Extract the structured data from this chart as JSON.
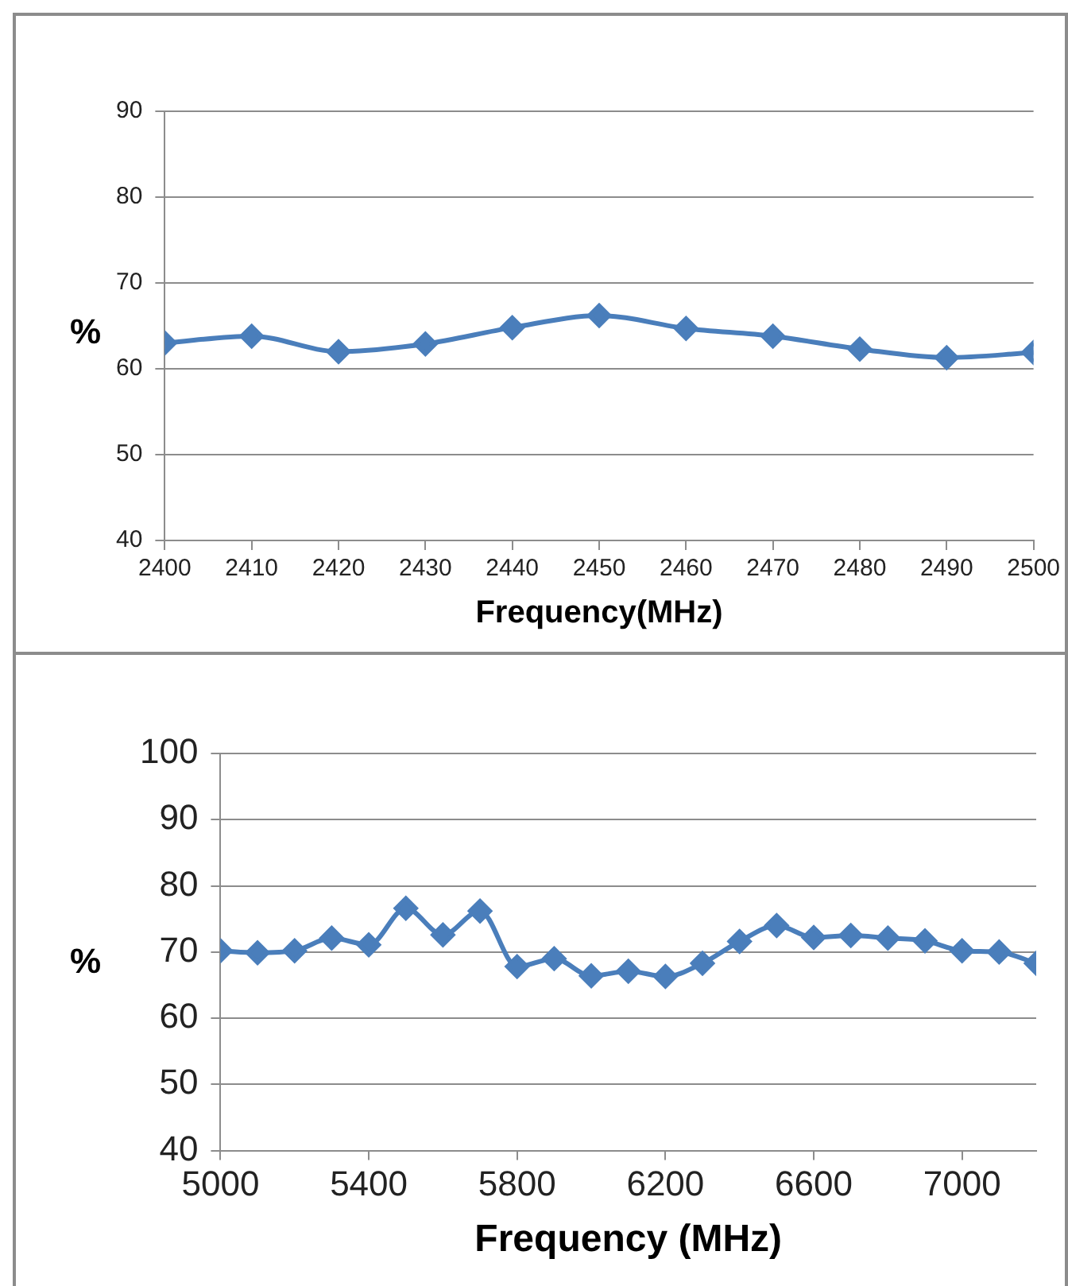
{
  "chart_data": [
    {
      "type": "line",
      "xlabel": "Frequency(MHz)",
      "ylabel": "%",
      "x": [
        2400,
        2410,
        2420,
        2430,
        2440,
        2450,
        2460,
        2470,
        2480,
        2490,
        2500
      ],
      "color": "#4a7ebb",
      "values": [
        63.0,
        63.8,
        62.0,
        62.9,
        64.8,
        66.2,
        64.7,
        63.8,
        62.3,
        61.3,
        61.9
      ],
      "xlim": [
        2400,
        2500
      ],
      "xticks": [
        2400,
        2410,
        2420,
        2430,
        2440,
        2450,
        2460,
        2470,
        2480,
        2490,
        2500
      ],
      "ylim": [
        40,
        90
      ],
      "yticks": [
        40,
        50,
        60,
        70,
        80,
        90
      ],
      "grid": "y",
      "marker": "diamond",
      "legend": false
    },
    {
      "type": "line",
      "xlabel": "Frequency (MHz)",
      "ylabel": "%",
      "x": [
        5000,
        5100,
        5200,
        5300,
        5400,
        5500,
        5600,
        5700,
        5800,
        5900,
        6000,
        6100,
        6200,
        6300,
        6400,
        6500,
        6600,
        6700,
        6800,
        6900,
        7000,
        7100,
        7200
      ],
      "color": "#4a7ebb",
      "values": [
        70.2,
        69.9,
        70.2,
        72.1,
        71.1,
        76.6,
        72.6,
        76.2,
        67.8,
        69.0,
        66.4,
        67.1,
        66.3,
        68.3,
        71.6,
        74.0,
        72.2,
        72.5,
        72.1,
        71.7,
        70.2,
        70.0,
        68.3
      ],
      "xlim": [
        5000,
        7200
      ],
      "xticks": [
        5000,
        5400,
        5800,
        6200,
        6600,
        7000
      ],
      "ylim": [
        40,
        100
      ],
      "yticks": [
        40,
        50,
        60,
        70,
        80,
        90,
        100
      ],
      "grid": "y",
      "marker": "diamond",
      "legend": false
    }
  ]
}
